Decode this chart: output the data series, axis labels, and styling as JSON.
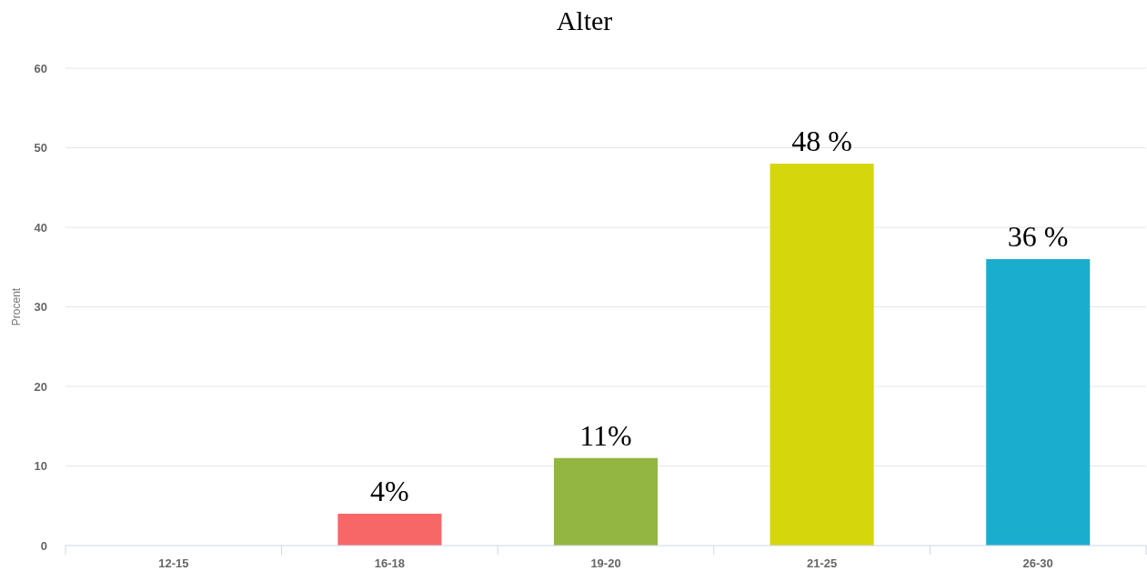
{
  "chart_data": {
    "type": "bar",
    "title": "Alter",
    "ylabel": "Procent",
    "categories": [
      "12-15",
      "16-18",
      "19-20",
      "21-25",
      "26-30"
    ],
    "values": [
      0,
      4,
      11,
      48,
      36
    ],
    "colors": [
      "#7cb5ec",
      "#f86767",
      "#93b542",
      "#d6d60c",
      "#1badce"
    ],
    "value_labels": [
      null,
      "4%",
      "11%",
      "48 %",
      "36 %"
    ],
    "ylim": [
      0,
      60
    ],
    "yticks": [
      0,
      10,
      20,
      30,
      40,
      50,
      60
    ],
    "grid": "y"
  }
}
